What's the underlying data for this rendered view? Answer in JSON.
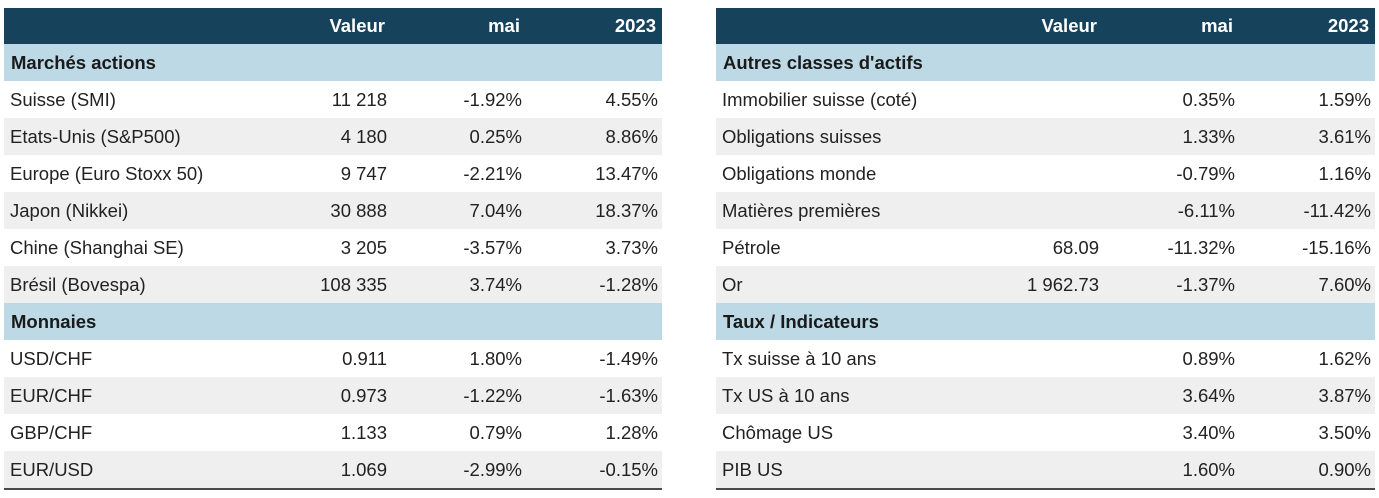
{
  "left": {
    "headers": {
      "label": "",
      "valeur": "Valeur",
      "mai": "mai",
      "year": "2023"
    },
    "sections": [
      {
        "title": "Marchés actions",
        "rows": [
          {
            "label": "Suisse (SMI)",
            "valeur": "11 218",
            "mai": "-1.92%",
            "year": "4.55%"
          },
          {
            "label": "Etats-Unis (S&P500)",
            "valeur": "4 180",
            "mai": "0.25%",
            "year": "8.86%"
          },
          {
            "label": "Europe (Euro Stoxx 50)",
            "valeur": "9 747",
            "mai": "-2.21%",
            "year": "13.47%"
          },
          {
            "label": "Japon (Nikkei)",
            "valeur": "30 888",
            "mai": "7.04%",
            "year": "18.37%"
          },
          {
            "label": "Chine (Shanghai SE)",
            "valeur": "3 205",
            "mai": "-3.57%",
            "year": "3.73%"
          },
          {
            "label": "Brésil (Bovespa)",
            "valeur": "108 335",
            "mai": "3.74%",
            "year": "-1.28%"
          }
        ]
      },
      {
        "title": "Monnaies",
        "rows": [
          {
            "label": "USD/CHF",
            "valeur": "0.911",
            "mai": "1.80%",
            "year": "-1.49%"
          },
          {
            "label": "EUR/CHF",
            "valeur": "0.973",
            "mai": "-1.22%",
            "year": "-1.63%"
          },
          {
            "label": "GBP/CHF",
            "valeur": "1.133",
            "mai": "0.79%",
            "year": "1.28%"
          },
          {
            "label": "EUR/USD",
            "valeur": "1.069",
            "mai": "-2.99%",
            "year": "-0.15%"
          }
        ]
      }
    ]
  },
  "right": {
    "headers": {
      "label": "",
      "valeur": "Valeur",
      "mai": "mai",
      "year": "2023"
    },
    "sections": [
      {
        "title": "Autres classes d'actifs",
        "rows": [
          {
            "label": "Immobilier suisse (coté)",
            "valeur": "",
            "mai": "0.35%",
            "year": "1.59%"
          },
          {
            "label": "Obligations suisses",
            "valeur": "",
            "mai": "1.33%",
            "year": "3.61%"
          },
          {
            "label": "Obligations monde",
            "valeur": "",
            "mai": "-0.79%",
            "year": "1.16%"
          },
          {
            "label": "Matières premières",
            "valeur": "",
            "mai": "-6.11%",
            "year": "-11.42%"
          },
          {
            "label": "Pétrole",
            "valeur": "68.09",
            "mai": "-11.32%",
            "year": "-15.16%"
          },
          {
            "label": "Or",
            "valeur": "1 962.73",
            "mai": "-1.37%",
            "year": "7.60%"
          }
        ]
      },
      {
        "title": "Taux / Indicateurs",
        "rows": [
          {
            "label": "Tx suisse à 10 ans",
            "valeur": "",
            "mai": "0.89%",
            "year": "1.62%"
          },
          {
            "label": "Tx US à 10 ans",
            "valeur": "",
            "mai": "3.64%",
            "year": "3.87%"
          },
          {
            "label": "Chômage US",
            "valeur": "",
            "mai": "3.40%",
            "year": "3.50%"
          },
          {
            "label": "PIB US",
            "valeur": "",
            "mai": "1.60%",
            "year": "0.90%"
          }
        ]
      }
    ]
  },
  "colors": {
    "header_bg": "#16425b",
    "section_bg": "#bcd9e5",
    "alt_row_bg": "#efefef"
  }
}
